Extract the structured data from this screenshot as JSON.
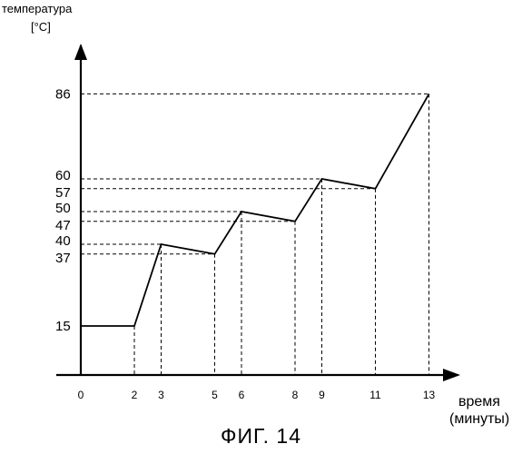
{
  "chart_data": {
    "type": "line",
    "ylabel": [
      "температура",
      "[°C]"
    ],
    "xlabel": [
      "время",
      "(минуты)"
    ],
    "caption": "ФИГ. 14",
    "x_ticks": [
      {
        "value": 0,
        "label": "0"
      },
      {
        "value": 2,
        "label": "2"
      },
      {
        "value": 3,
        "label": "3"
      },
      {
        "value": 5,
        "label": "5"
      },
      {
        "value": 6,
        "label": "6"
      },
      {
        "value": 8,
        "label": "8"
      },
      {
        "value": 9,
        "label": "9"
      },
      {
        "value": 11,
        "label": "11"
      },
      {
        "value": 13,
        "label": "13"
      }
    ],
    "y_ticks": [
      {
        "value": 15,
        "label": "15"
      },
      {
        "value": 37,
        "label": "37"
      },
      {
        "value": 40,
        "label": "40"
      },
      {
        "value": 47,
        "label": "47"
      },
      {
        "value": 50,
        "label": "50"
      },
      {
        "value": 57,
        "label": "57"
      },
      {
        "value": 60,
        "label": "60"
      },
      {
        "value": 86,
        "label": "86"
      }
    ],
    "series": [
      {
        "x": [
          0,
          2,
          3,
          5,
          6,
          8,
          9,
          11,
          13
        ],
        "y": [
          15,
          15,
          40,
          37,
          50,
          47,
          60,
          57,
          86
        ]
      }
    ],
    "guides": true
  }
}
